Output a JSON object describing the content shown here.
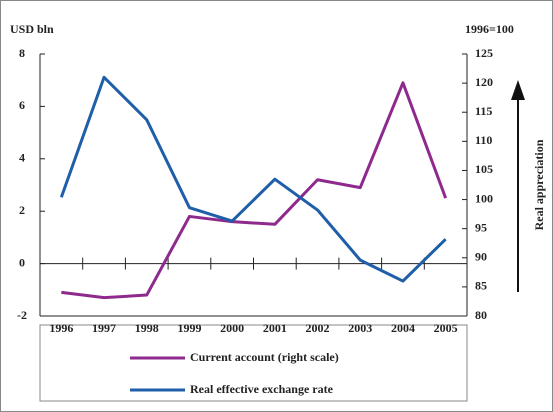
{
  "chart_data": {
    "type": "line",
    "y_label": "USD bln",
    "y2_label": "1996=100",
    "annotation": "Real appreciation",
    "categories": [
      "1996",
      "1997",
      "1998",
      "1999",
      "2000",
      "2001",
      "2002",
      "2003",
      "2004",
      "2005"
    ],
    "series": [
      {
        "name": "Current account (right scale)",
        "color": "#8e2a8e",
        "values": [
          -1.1,
          -1.3,
          -1.2,
          1.8,
          1.6,
          1.5,
          3.2,
          2.9,
          6.9,
          2.5
        ]
      },
      {
        "name": "Real effective exchange rate",
        "color": "#1f5ea8",
        "axis": "y2",
        "values": [
          100.4,
          121.0,
          113.7,
          98.6,
          96.3,
          103.5,
          98.2,
          89.6,
          86.0,
          93.2
        ]
      }
    ],
    "ylim": [
      -2,
      8
    ],
    "yticks": [
      -2,
      0,
      2,
      4,
      6,
      8
    ],
    "y2lim": [
      80,
      125
    ],
    "y2ticks": [
      80,
      85,
      90,
      95,
      100,
      105,
      110,
      115,
      120,
      125
    ]
  }
}
